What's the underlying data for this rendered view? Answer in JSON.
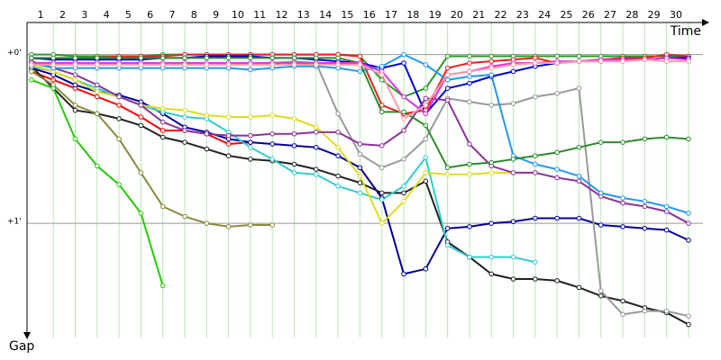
{
  "chart_data": {
    "type": "line",
    "x_label": "Time",
    "y_label": "Gap",
    "x": [
      0,
      1,
      2,
      3,
      4,
      5,
      6,
      7,
      8,
      9,
      10,
      11,
      12,
      13,
      14,
      15,
      16,
      17,
      18,
      19,
      20,
      21,
      22,
      23,
      24,
      25,
      26,
      27,
      28,
      29,
      30
    ],
    "xlim": [
      -0.2,
      30.66
    ],
    "xticks": [
      1,
      2,
      3,
      4,
      5,
      6,
      7,
      8,
      9,
      10,
      11,
      12,
      13,
      14,
      15,
      16,
      17,
      18,
      19,
      20,
      21,
      22,
      23,
      24,
      25,
      26,
      27,
      28,
      29,
      30
    ],
    "ylim": [
      -0.19,
      1.65
    ],
    "y_inverted": true,
    "yticks": [
      {
        "value": 0,
        "label": "+0'"
      },
      {
        "value": 1,
        "label": "+1'"
      }
    ],
    "grid": true,
    "series": [
      {
        "color": "#2a9a2a",
        "values": [
          0,
          0,
          0.01,
          0.01,
          0.01,
          0.01,
          0,
          0,
          0,
          0,
          0,
          0,
          0,
          0,
          0,
          0.01,
          0.15,
          0.25,
          0.2,
          0.01,
          0.01,
          0.01,
          0.01,
          0.01,
          0.01,
          0.01,
          0.01,
          0.01,
          0.01,
          0.01,
          0.01
        ]
      },
      {
        "color": "#e82020",
        "values": [
          0.02,
          0.03,
          0.02,
          0.02,
          0.01,
          0.01,
          0.01,
          0,
          0,
          0,
          0,
          0,
          0,
          0,
          0,
          0.01,
          0.3,
          0.35,
          0.33,
          0.08,
          0.05,
          0.04,
          0.03,
          0.02,
          0.05,
          0.04,
          0.03,
          0.02,
          0.02,
          0,
          0.01
        ]
      },
      {
        "color": "#ff0000",
        "values": [
          0.1,
          0.15,
          0.2,
          0.25,
          0.3,
          0.37,
          0.45,
          0.45,
          0.47,
          0.53,
          0.52,
          null,
          null,
          null,
          null,
          null,
          null,
          null,
          null,
          null,
          null,
          null,
          null,
          null,
          null,
          null,
          null,
          null,
          null,
          null,
          null
        ]
      },
      {
        "color": "#0000cc",
        "values": [
          0.02,
          0.03,
          0.03,
          0.03,
          0.03,
          0.03,
          0.02,
          0.02,
          0.01,
          0.01,
          0.01,
          0.02,
          0.02,
          0.03,
          0.04,
          0.05,
          0.08,
          0.05,
          0.35,
          0.2,
          0.17,
          0.13,
          0.1,
          0.07,
          0.05,
          0.04,
          0.04,
          0.03,
          0.03,
          0.02,
          0.02
        ]
      },
      {
        "color": "#000099",
        "values": [
          0.08,
          0.12,
          0.18,
          0.22,
          0.24,
          0.28,
          0.35,
          0.43,
          0.46,
          0.5,
          0.52,
          0.53,
          0.54,
          0.55,
          0.6,
          0.67,
          0.85,
          1.3,
          1.27,
          1.03,
          1.02,
          1.0,
          0.99,
          0.97,
          0.97,
          0.97,
          1.01,
          1.02,
          1.03,
          1.04,
          1.1
        ]
      },
      {
        "color": "#222222",
        "values": [
          0.07,
          0.2,
          0.33,
          0.35,
          0.38,
          0.42,
          0.49,
          0.52,
          0.56,
          0.6,
          0.62,
          0.63,
          0.65,
          0.68,
          0.72,
          0.76,
          0.82,
          0.82,
          0.75,
          1.11,
          1.2,
          1.3,
          1.33,
          1.33,
          1.34,
          1.38,
          1.43,
          1.46,
          1.5,
          1.53,
          1.6
        ]
      },
      {
        "color": "#999999",
        "values": [
          0.05,
          0.06,
          0.06,
          0.05,
          0.05,
          0.06,
          0.06,
          0.06,
          0.06,
          0.05,
          0.05,
          0.05,
          0.04,
          0.05,
          0.35,
          0.59,
          0.67,
          0.62,
          0.5,
          0.26,
          0.28,
          0.3,
          0.29,
          0.25,
          0.23,
          0.2,
          1.4,
          1.54,
          1.52,
          1.52,
          1.55
        ]
      },
      {
        "color": "#8a8a40",
        "values": [
          0.1,
          0.18,
          0.3,
          0.35,
          0.5,
          0.7,
          0.9,
          0.96,
          1.0,
          1.02,
          1.01,
          1.01,
          null,
          null,
          null,
          null,
          null,
          null,
          null,
          null,
          null,
          null,
          null,
          null,
          null,
          null,
          null,
          null,
          null,
          null,
          null
        ]
      },
      {
        "color": "#22cc00",
        "values": [
          0.15,
          0.2,
          0.5,
          0.66,
          0.77,
          0.94,
          1.37,
          null,
          null,
          null,
          null,
          null,
          null,
          null,
          null,
          null,
          null,
          null,
          null,
          null,
          null,
          null,
          null,
          null,
          null,
          null,
          null,
          null,
          null,
          null,
          null
        ]
      },
      {
        "color": "#33cccc",
        "values": [
          0.07,
          0.1,
          0.15,
          0.2,
          0.25,
          0.3,
          0.34,
          0.37,
          0.38,
          0.46,
          0.55,
          0.62,
          0.7,
          0.71,
          0.78,
          0.82,
          0.86,
          0.78,
          0.61,
          1.13,
          1.2,
          1.2,
          1.2,
          1.23,
          null,
          null,
          null,
          null,
          null,
          null,
          null
        ]
      },
      {
        "color": "#dddd22",
        "values": [
          0.06,
          0.1,
          0.15,
          0.22,
          0.25,
          0.3,
          0.32,
          0.33,
          0.36,
          0.37,
          0.37,
          0.36,
          0.38,
          0.43,
          0.55,
          0.72,
          1.0,
          0.87,
          0.7,
          0.71,
          0.71,
          0.7,
          0.7,
          0.7,
          null,
          null,
          null,
          null,
          null,
          null,
          null
        ]
      },
      {
        "color": "#8b3399",
        "values": [
          0.04,
          0.08,
          0.12,
          0.18,
          0.25,
          0.3,
          0.4,
          0.45,
          0.47,
          0.48,
          0.48,
          0.47,
          0.47,
          0.46,
          0.46,
          0.53,
          0.54,
          0.45,
          0.26,
          0.27,
          0.53,
          0.66,
          0.7,
          0.7,
          0.73,
          0.75,
          0.84,
          0.88,
          0.9,
          0.93,
          1.0
        ]
      },
      {
        "color": "#2299ee",
        "values": [
          0.05,
          0.08,
          0.08,
          0.08,
          0.08,
          0.08,
          0.08,
          0.08,
          0.08,
          0.08,
          0.09,
          0.08,
          0.07,
          0.07,
          0.08,
          0.1,
          0.07,
          0.0,
          0.06,
          0.15,
          0.13,
          0.12,
          0.6,
          0.65,
          0.68,
          0.72,
          0.82,
          0.85,
          0.87,
          0.9,
          0.94
        ]
      },
      {
        "color": "#2d8a2d",
        "values": [
          0.02,
          0.02,
          0.02,
          0.02,
          0.02,
          0.02,
          0.02,
          0.02,
          0.02,
          0.02,
          0.02,
          0.02,
          0.02,
          0.02,
          0.02,
          0.05,
          0.34,
          0.34,
          0.42,
          0.67,
          0.65,
          0.64,
          0.62,
          0.6,
          0.58,
          0.55,
          0.52,
          0.52,
          0.5,
          0.49,
          0.5
        ]
      },
      {
        "color": "#dd33dd",
        "values": [
          0.05,
          0.05,
          0.05,
          0.05,
          0.05,
          0.05,
          0.05,
          0.05,
          0.05,
          0.05,
          0.05,
          0.05,
          0.05,
          0.05,
          0.05,
          0.05,
          0.1,
          0.25,
          0.35,
          0.12,
          0.1,
          0.07,
          0.05,
          0.05,
          0.04,
          0.04,
          0.03,
          0.03,
          0.03,
          0.02,
          0.03
        ]
      },
      {
        "color": "#ff99aa",
        "values": [
          0.06,
          0.06,
          0.06,
          0.06,
          0.06,
          0.06,
          0.06,
          0.06,
          0.06,
          0.06,
          0.06,
          0.06,
          0.06,
          0.06,
          0.06,
          0.06,
          0.12,
          0.38,
          0.3,
          0.12,
          0.1,
          0.08,
          0.06,
          0.05,
          0.05,
          0.04,
          0.04,
          0.04,
          0.03,
          0.04,
          0.04
        ]
      }
    ]
  }
}
